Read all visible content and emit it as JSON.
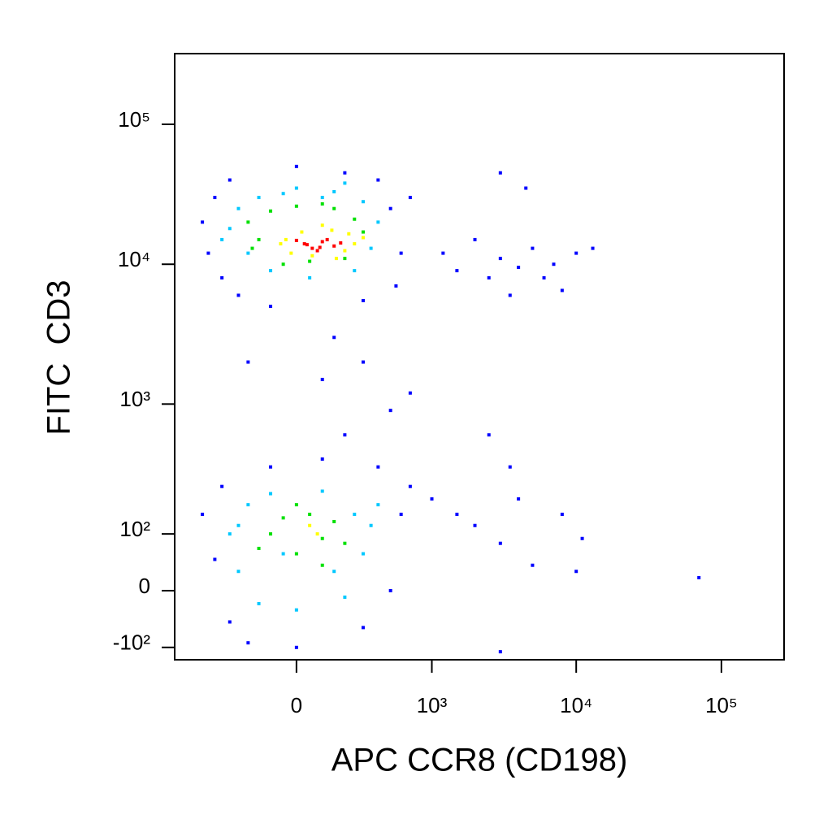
{
  "chart_data": {
    "type": "scatter",
    "x_label": "APC CCR8 (CD198)",
    "y_label": "FITC  CD3",
    "xscale": "biexponential",
    "yscale": "biexponential",
    "xlim": [
      -800,
      270000
    ],
    "ylim": [
      -130,
      320000
    ],
    "xticks": [
      0,
      {
        "value": 1000,
        "label": "10³"
      },
      {
        "value": 10000,
        "label": "10⁴"
      },
      {
        "value": 100000,
        "label": "10⁵"
      }
    ],
    "yticks": [
      {
        "value": -100,
        "label": "-10²"
      },
      0,
      {
        "value": 100,
        "label": "10²"
      },
      {
        "value": 1000,
        "label": "10³"
      },
      {
        "value": 10000,
        "label": "10⁴"
      },
      {
        "value": 100000,
        "label": "10⁵"
      }
    ],
    "series": [
      {
        "color": "#0000ff",
        "x": [
          -500,
          -450,
          -400,
          -350,
          -300,
          -250,
          400,
          500,
          600,
          550,
          300,
          -100,
          200,
          0,
          700,
          1200,
          1500,
          2000,
          2500,
          3000,
          3500,
          4000,
          5000,
          6000,
          7000,
          8000,
          10000,
          13000,
          3000,
          4500,
          150,
          300,
          100,
          500,
          200,
          -200,
          700,
          2500,
          3500,
          -500,
          -400,
          -350,
          -300,
          -200,
          0,
          300,
          500,
          600,
          700,
          400,
          100,
          -100,
          1000,
          1500,
          2000,
          3000,
          4000,
          5000,
          8000,
          10000,
          11000,
          70000,
          3000
        ],
        "y": [
          20000,
          12000,
          30000,
          8000,
          40000,
          6000,
          40000,
          25000,
          12000,
          7000,
          5500,
          5000,
          45000,
          50000,
          30000,
          12000,
          9000,
          15000,
          8000,
          11000,
          6000,
          9500,
          13000,
          8000,
          10000,
          6500,
          12000,
          13000,
          45000,
          35000,
          3000,
          2000,
          1500,
          900,
          600,
          2000,
          1200,
          600,
          350,
          150,
          50,
          250,
          -50,
          -90,
          -100,
          -60,
          0,
          150,
          250,
          350,
          400,
          350,
          200,
          150,
          120,
          80,
          200,
          40,
          150,
          30,
          90,
          20,
          -110
        ]
      },
      {
        "color": "#00c8ff",
        "x": [
          -300,
          -250,
          -200,
          -150,
          -100,
          0,
          50,
          150,
          250,
          300,
          350,
          400,
          -350,
          200,
          100,
          -50,
          -300,
          -250,
          -200,
          -150,
          -100,
          0,
          100,
          200,
          250,
          300,
          350,
          -50,
          150,
          400,
          -250
        ],
        "y": [
          18000,
          25000,
          12000,
          30000,
          9000,
          35000,
          8000,
          33000,
          9000,
          28000,
          13000,
          20000,
          15000,
          38000,
          30000,
          32000,
          100,
          30,
          180,
          -20,
          220,
          -30,
          230,
          -10,
          150,
          60,
          120,
          60,
          30,
          180,
          120
        ]
      },
      {
        "color": "#00e000",
        "x": [
          -200,
          -150,
          -100,
          -50,
          0,
          50,
          150,
          200,
          250,
          300,
          -180,
          100,
          -100,
          -50,
          0,
          50,
          100,
          150,
          200,
          -150,
          0,
          100
        ],
        "y": [
          20000,
          15000,
          24000,
          10000,
          26000,
          10500,
          25000,
          11000,
          21000,
          17000,
          13000,
          27000,
          100,
          140,
          60,
          150,
          90,
          130,
          80,
          70,
          180,
          40
        ]
      },
      {
        "color": "#ffff00",
        "x": [
          -40,
          200,
          20,
          250,
          -20,
          140,
          60,
          300,
          100,
          -60,
          220,
          160,
          50,
          80
        ],
        "y": [
          15000,
          12500,
          17000,
          14000,
          12000,
          17500,
          11500,
          15500,
          19000,
          14000,
          16500,
          11000,
          120,
          100
        ]
      },
      {
        "color": "#ff0000",
        "x": [
          30,
          60,
          100,
          150,
          80,
          120,
          40,
          180,
          0,
          90
        ],
        "y": [
          14000,
          13000,
          14500,
          13500,
          12500,
          15000,
          13800,
          14200,
          14800,
          13200
        ]
      }
    ]
  }
}
